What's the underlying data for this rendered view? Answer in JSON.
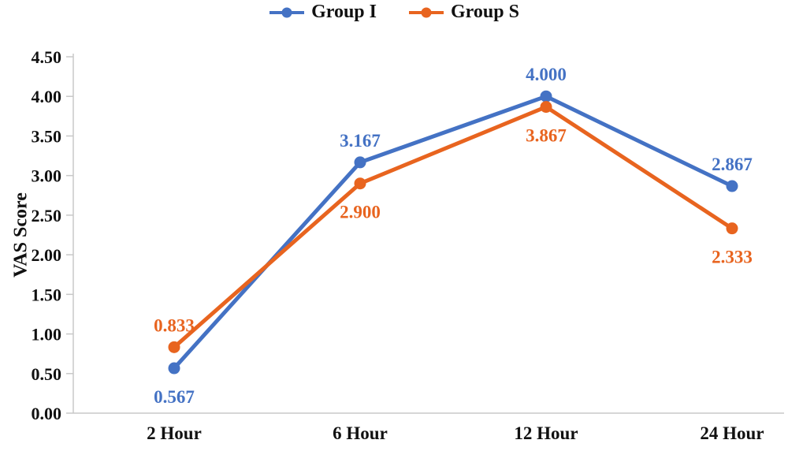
{
  "chart_data": {
    "type": "line",
    "title": "",
    "categories": [
      "2 Hour",
      "6 Hour",
      "12 Hour",
      "24 Hour"
    ],
    "series": [
      {
        "name": "Group I",
        "color": "#4472C4",
        "values": [
          0.567,
          3.167,
          4.0,
          2.867
        ],
        "data_labels": [
          "0.567",
          "3.167",
          "4.000",
          "2.867"
        ],
        "label_positions": [
          "below",
          "above",
          "above",
          "above"
        ]
      },
      {
        "name": "Group S",
        "color": "#E8641F",
        "values": [
          0.833,
          2.9,
          3.867,
          2.333
        ],
        "data_labels": [
          "0.833",
          "2.900",
          "3.867",
          "2.333"
        ],
        "label_positions": [
          "above",
          "below",
          "below",
          "below"
        ]
      }
    ],
    "xlabel": "",
    "ylabel": "VAS Score",
    "ylim": [
      0,
      4.5
    ],
    "ytick_step": 0.5,
    "ytick_labels": [
      "0.00",
      "0.50",
      "1.00",
      "1.50",
      "2.00",
      "2.50",
      "3.00",
      "3.50",
      "4.00",
      "4.50"
    ],
    "legend_position": "top",
    "grid": false,
    "axis_color": "#C8C8C8",
    "text_color": "#111111"
  }
}
